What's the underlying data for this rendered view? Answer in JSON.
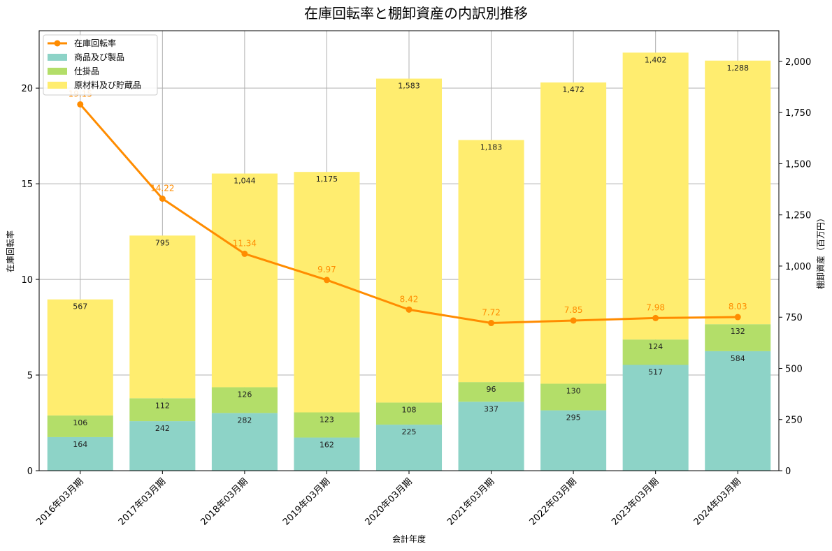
{
  "chart_data": {
    "type": "bar",
    "title": "在庫回転率と棚卸資産の内訳別推移",
    "xlabel": "会計年度",
    "ylabel_left": "在庫回転率",
    "ylabel_right": "棚卸資産（百万円）",
    "categories": [
      "2016年03月期",
      "2017年03月期",
      "2018年03月期",
      "2019年03月期",
      "2020年03月期",
      "2021年03月期",
      "2022年03月期",
      "2023年03月期",
      "2024年03月期"
    ],
    "stacked_series": [
      {
        "name": "商品及び製品",
        "color": "#8dd3c7",
        "values": [
          164,
          242,
          282,
          162,
          225,
          337,
          295,
          517,
          584
        ]
      },
      {
        "name": "仕掛品",
        "color": "#b3de69",
        "values": [
          106,
          112,
          126,
          123,
          108,
          96,
          130,
          124,
          132
        ]
      },
      {
        "name": "原材料及び貯蔵品",
        "color": "#ffed6f",
        "values": [
          567,
          795,
          1044,
          1175,
          1583,
          1183,
          1472,
          1402,
          1288
        ]
      }
    ],
    "line_series": {
      "name": "在庫回転率",
      "color": "#ff8c00",
      "values": [
        19.15,
        14.22,
        11.34,
        9.97,
        8.42,
        7.72,
        7.85,
        7.98,
        8.03
      ],
      "labels": [
        "19.15",
        "14.22",
        "11.34",
        "9.97",
        "8.42",
        "7.72",
        "7.85",
        "7.98",
        "8.03"
      ]
    },
    "left_axis": {
      "min": 0,
      "max": 23,
      "ticks": [
        0,
        5,
        10,
        15,
        20
      ],
      "tick_labels": [
        "0",
        "5",
        "10",
        "15",
        "20"
      ]
    },
    "right_axis": {
      "min": 0,
      "max": 2150,
      "ticks": [
        0,
        250,
        500,
        750,
        1000,
        1250,
        1500,
        1750,
        2000
      ],
      "tick_labels": [
        "0",
        "250",
        "500",
        "750",
        "1,000",
        "1,250",
        "1,500",
        "1,750",
        "2,000"
      ]
    },
    "grid": true,
    "legend_position": "top-left"
  }
}
